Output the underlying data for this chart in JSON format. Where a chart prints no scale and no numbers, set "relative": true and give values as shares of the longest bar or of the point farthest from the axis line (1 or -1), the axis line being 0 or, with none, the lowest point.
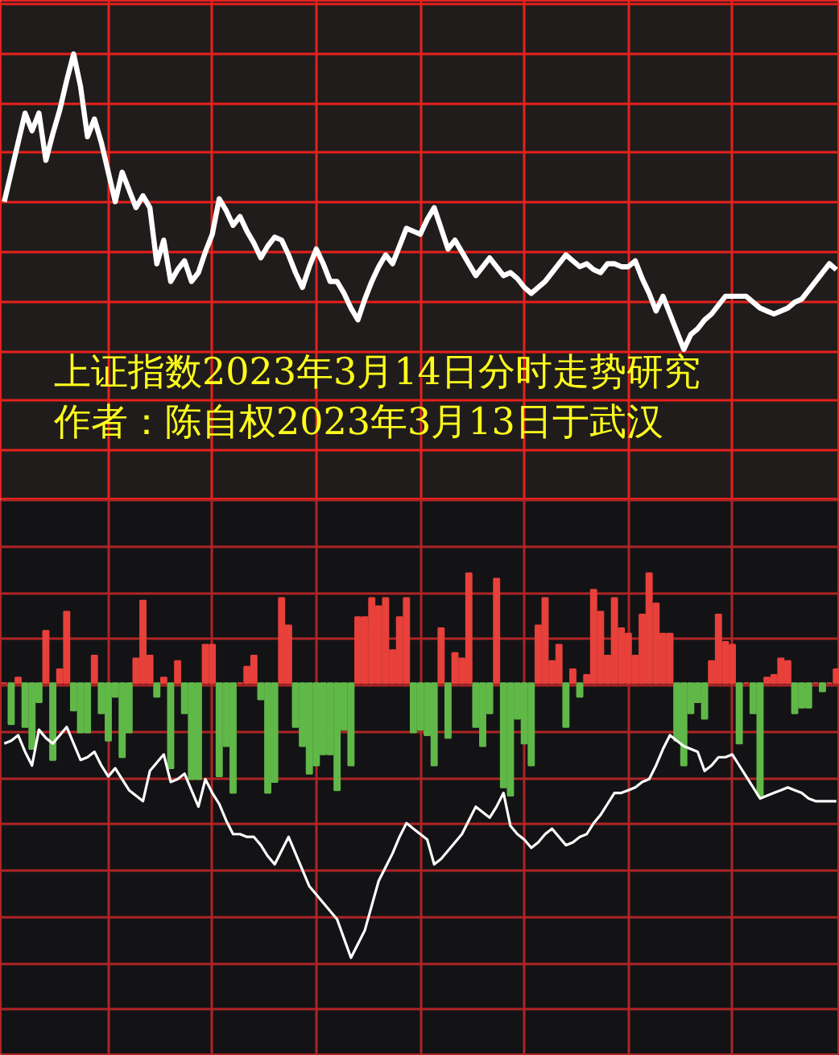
{
  "chart_data": [
    {
      "type": "line",
      "relative": true,
      "grid": true,
      "tick_labels": false,
      "categories": [
        null,
        null,
        null,
        null,
        null,
        null,
        null,
        null,
        null,
        null,
        null,
        null,
        null,
        null,
        null,
        null,
        null,
        null,
        null,
        null,
        null,
        null,
        null,
        null,
        null,
        null,
        null,
        null,
        null,
        null,
        null,
        null,
        null,
        null,
        null,
        null,
        null,
        null,
        null,
        null,
        null,
        null,
        null,
        null,
        null,
        null,
        null,
        null,
        null,
        null,
        null,
        null,
        null,
        null,
        null,
        null,
        null,
        null,
        null,
        null,
        null,
        null,
        null,
        null,
        null,
        null,
        null,
        null,
        null,
        null,
        null,
        null,
        null,
        null,
        null,
        null,
        null,
        null,
        null,
        null,
        null,
        null,
        null,
        null,
        null,
        null,
        null,
        null,
        null,
        null,
        null,
        null,
        null,
        null,
        null,
        null,
        null,
        null,
        null,
        null,
        null,
        null,
        null,
        null,
        null,
        null,
        null,
        null,
        null,
        null,
        null,
        null,
        null,
        null,
        null,
        null,
        null,
        null,
        null,
        null,
        null
      ],
      "annotations": [
        "上证指数2023年3月14日分时走势研究",
        "作者：陈自权2023年3月13日于武汉"
      ],
      "series": [
        {
          "color": "#ffffff",
          "values": [
            0.5,
            0.6,
            0.7,
            0.8,
            0.74,
            0.8,
            0.64,
            0.73,
            0.81,
            0.91,
            1.0,
            0.89,
            0.72,
            0.78,
            0.7,
            0.6,
            0.5,
            0.6,
            0.54,
            0.48,
            0.52,
            0.48,
            0.29,
            0.37,
            0.23,
            0.27,
            0.3,
            0.23,
            0.26,
            0.33,
            0.39,
            0.51,
            0.47,
            0.42,
            0.45,
            0.4,
            0.36,
            0.31,
            0.35,
            0.38,
            0.37,
            0.32,
            0.26,
            0.21,
            0.28,
            0.34,
            0.29,
            0.23,
            0.23,
            0.19,
            0.14,
            0.1,
            0.17,
            0.23,
            0.28,
            0.32,
            0.29,
            0.35,
            0.41,
            0.4,
            0.39,
            0.44,
            0.48,
            0.41,
            0.34,
            0.37,
            0.33,
            0.29,
            0.25,
            0.28,
            0.31,
            0.28,
            0.25,
            0.26,
            0.24,
            0.21,
            0.19,
            0.21,
            0.23,
            0.26,
            0.29,
            0.32,
            0.3,
            0.28,
            0.29,
            0.27,
            0.26,
            0.29,
            0.29,
            0.28,
            0.28,
            0.3,
            0.24,
            0.19,
            0.13,
            0.18,
            0.12,
            0.06,
            0.0,
            0.05,
            0.07,
            0.1,
            0.12,
            0.15,
            0.18,
            0.18,
            0.18,
            0.18,
            0.16,
            0.14,
            0.13,
            0.12,
            0.13,
            0.14,
            0.16,
            0.17,
            0.2,
            0.23,
            0.26,
            0.29,
            0.27
          ]
        }
      ]
    },
    {
      "type": "bar",
      "relative": true,
      "grid": true,
      "tick_labels": false,
      "categories": [
        null,
        null,
        null,
        null,
        null,
        null,
        null,
        null,
        null,
        null,
        null,
        null,
        null,
        null,
        null,
        null,
        null,
        null,
        null,
        null,
        null,
        null,
        null,
        null,
        null,
        null,
        null,
        null,
        null,
        null,
        null,
        null,
        null,
        null,
        null,
        null,
        null,
        null,
        null,
        null,
        null,
        null,
        null,
        null,
        null,
        null,
        null,
        null,
        null,
        null,
        null,
        null,
        null,
        null,
        null,
        null,
        null,
        null,
        null,
        null,
        null,
        null,
        null,
        null,
        null,
        null,
        null,
        null,
        null,
        null,
        null,
        null,
        null,
        null,
        null,
        null,
        null,
        null,
        null,
        null,
        null,
        null,
        null,
        null,
        null,
        null,
        null,
        null,
        null,
        null,
        null,
        null,
        null,
        null,
        null,
        null,
        null,
        null,
        null,
        null,
        null,
        null,
        null,
        null,
        null,
        null,
        null,
        null,
        null,
        null,
        null,
        null,
        null,
        null,
        null,
        null,
        null,
        null,
        null,
        null,
        null
      ],
      "series": [
        {
          "colors": [
            "#e8403a",
            "#60b848",
            "#e8403a",
            "#60b848",
            "#60b848",
            "#60b848",
            "#e8403a",
            "#60b848",
            "#e8403a",
            "#e8403a",
            "#60b848",
            "#60b848",
            "#60b848",
            "#e8403a",
            "#60b848",
            "#60b848",
            "#60b848",
            "#60b848",
            "#60b848",
            "#e8403a",
            "#e8403a",
            "#e8403a",
            "#60b848",
            "#e8403a",
            "#60b848",
            "#e8403a",
            "#60b848",
            "#60b848",
            "#60b848",
            "#e8403a",
            "#e8403a",
            "#60b848",
            "#60b848",
            "#60b848",
            "#e8403a",
            "#e8403a",
            "#e8403a",
            "#60b848",
            "#60b848",
            "#60b848",
            "#e8403a",
            "#e8403a",
            "#60b848",
            "#60b848",
            "#60b848",
            "#60b848",
            "#60b848",
            "#60b848",
            "#60b848",
            "#60b848",
            "#60b848",
            "#e8403a",
            "#e8403a",
            "#e8403a",
            "#e8403a",
            "#e8403a",
            "#e8403a",
            "#e8403a",
            "#e8403a",
            "#60b848",
            "#60b848",
            "#60b848",
            "#60b848",
            "#e8403a",
            "#60b848",
            "#e8403a",
            "#e8403a",
            "#e8403a",
            "#60b848",
            "#60b848",
            "#60b848",
            "#e8403a",
            "#60b848",
            "#60b848",
            "#60b848",
            "#60b848",
            "#60b848",
            "#e8403a",
            "#e8403a",
            "#e8403a",
            "#e8403a",
            "#60b848",
            "#e8403a",
            "#60b848",
            "#e8403a",
            "#e8403a",
            "#e8403a",
            "#e8403a",
            "#e8403a",
            "#e8403a",
            "#e8403a",
            "#e8403a",
            "#e8403a",
            "#e8403a",
            "#e8403a",
            "#e8403a",
            "#e8403a",
            "#60b848",
            "#60b848",
            "#60b848",
            "#60b848",
            "#60b848",
            "#e8403a",
            "#e8403a",
            "#e8403a",
            "#e8403a",
            "#60b848",
            "#e8403a",
            "#60b848",
            "#60b848",
            "#e8403a",
            "#e8403a",
            "#e8403a",
            "#e8403a",
            "#60b848",
            "#60b848",
            "#60b848",
            "#e8403a",
            "#60b848",
            "#e8403a",
            "#e8403a"
          ],
          "values": [
            0,
            -0.15,
            0.02,
            -0.16,
            -0.24,
            -0.07,
            0.19,
            -0.28,
            0.05,
            0.26,
            -0.1,
            -0.18,
            -0.18,
            0.1,
            -0.11,
            -0.21,
            -0.05,
            -0.27,
            -0.18,
            0.09,
            0.3,
            0.1,
            -0.05,
            0.02,
            -0.31,
            0.08,
            -0.11,
            -0.35,
            -0.35,
            0.14,
            0.14,
            -0.34,
            -0.23,
            -0.4,
            0,
            0.06,
            0.1,
            -0.06,
            -0.4,
            -0.36,
            0.31,
            0.21,
            -0.16,
            -0.23,
            -0.33,
            -0.3,
            -0.26,
            -0.26,
            -0.39,
            -0.17,
            -0.3,
            0.24,
            0.24,
            0.31,
            0.28,
            0.31,
            0.12,
            0.24,
            0.31,
            -0.18,
            -0.17,
            -0.19,
            -0.3,
            0.2,
            -0.2,
            0.11,
            0.09,
            0.4,
            -0.16,
            -0.23,
            -0.11,
            0.38,
            -0.38,
            -0.41,
            -0.13,
            -0.22,
            -0.3,
            0.21,
            0.31,
            0.08,
            0.14,
            -0.16,
            0.05,
            -0.05,
            0.03,
            0.34,
            0.26,
            0.1,
            0.31,
            0.2,
            0.18,
            0.1,
            0.25,
            0.4,
            0.29,
            0.18,
            0.18,
            -0.21,
            -0.3,
            -0.11,
            -0.07,
            -0.13,
            0.08,
            0.25,
            0.15,
            0.14,
            -0.22,
            0,
            -0.11,
            -0.41,
            0.02,
            0.03,
            0.09,
            0.08,
            -0.11,
            -0.09,
            -0.09,
            0,
            -0.03,
            0,
            0.05
          ]
        },
        {
          "type": "line",
          "color": "#ffffff",
          "values": [
            -0.22,
            -0.21,
            -0.19,
            -0.25,
            -0.3,
            -0.17,
            -0.2,
            -0.22,
            -0.19,
            -0.16,
            -0.22,
            -0.28,
            -0.27,
            -0.25,
            -0.3,
            -0.34,
            -0.31,
            -0.35,
            -0.39,
            -0.41,
            -0.43,
            -0.32,
            -0.29,
            -0.26,
            -0.36,
            -0.35,
            -0.33,
            -0.39,
            -0.45,
            -0.35,
            -0.4,
            -0.44,
            -0.5,
            -0.55,
            -0.55,
            -0.56,
            -0.56,
            -0.59,
            -0.63,
            -0.66,
            -0.61,
            -0.56,
            -0.62,
            -0.68,
            -0.74,
            -0.77,
            -0.8,
            -0.83,
            -0.86,
            -0.93,
            -1.0,
            -0.95,
            -0.9,
            -0.81,
            -0.72,
            -0.67,
            -0.62,
            -0.56,
            -0.51,
            -0.53,
            -0.55,
            -0.57,
            -0.66,
            -0.64,
            -0.61,
            -0.58,
            -0.55,
            -0.5,
            -0.45,
            -0.47,
            -0.49,
            -0.45,
            -0.4,
            -0.52,
            -0.55,
            -0.57,
            -0.6,
            -0.58,
            -0.55,
            -0.53,
            -0.56,
            -0.59,
            -0.58,
            -0.56,
            -0.55,
            -0.51,
            -0.48,
            -0.44,
            -0.4,
            -0.4,
            -0.39,
            -0.38,
            -0.36,
            -0.35,
            -0.3,
            -0.24,
            -0.19,
            -0.21,
            -0.23,
            -0.24,
            -0.25,
            -0.32,
            -0.3,
            -0.27,
            -0.27,
            -0.26,
            -0.3,
            -0.34,
            -0.38,
            -0.42,
            -0.41,
            -0.4,
            -0.39,
            -0.38,
            -0.39,
            -0.4,
            -0.42,
            -0.43,
            -0.43,
            -0.43,
            -0.43
          ]
        }
      ]
    }
  ]
}
